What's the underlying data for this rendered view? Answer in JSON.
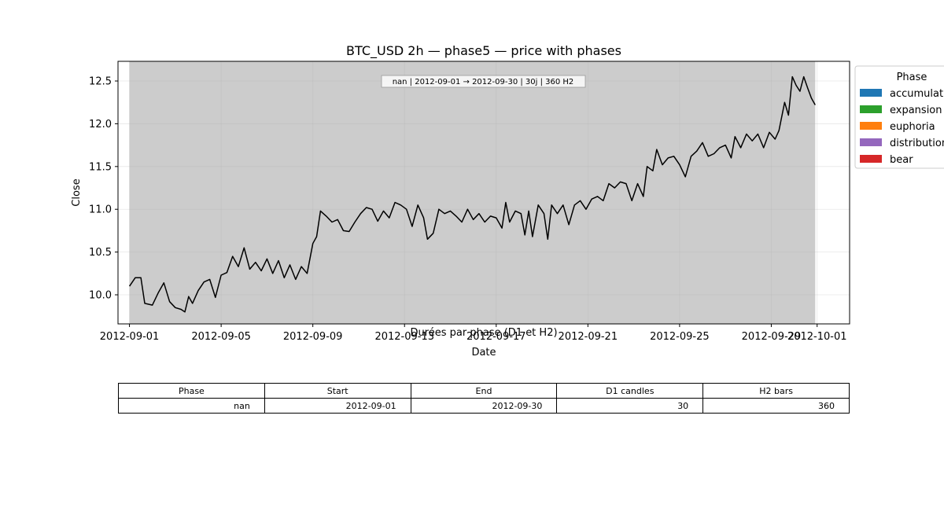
{
  "chart_data": {
    "type": "line",
    "title": "BTC_USD 2h — phase5 — price with phases",
    "xlabel": "Date",
    "ylabel": "Close",
    "x_ticks": [
      "2012-09-01",
      "2012-09-05",
      "2012-09-09",
      "2012-09-13",
      "2012-09-17",
      "2012-09-21",
      "2012-09-25",
      "2012-09-29",
      "2012-10-01"
    ],
    "y_ticks": [
      10.0,
      10.5,
      11.0,
      11.5,
      12.0,
      12.5
    ],
    "xlim": [
      "2012-08-31T12:00",
      "2012-10-02T10:00"
    ],
    "ylim": [
      9.66,
      12.73
    ],
    "grid": true,
    "legend": {
      "title": "Phase",
      "placement": "outside-top-right",
      "entries": [
        {
          "label": "accumulation",
          "color": "#1f77b4"
        },
        {
          "label": "expansion",
          "color": "#2ca02c"
        },
        {
          "label": "euphoria",
          "color": "#ff7f0e"
        },
        {
          "label": "distribution",
          "color": "#9467bd"
        },
        {
          "label": "bear",
          "color": "#d62728"
        }
      ]
    },
    "shaded_regions": [
      {
        "start": "2012-09-01",
        "end": "2012-09-30T22:00",
        "color": "#cccccc"
      }
    ],
    "annotation": "nan | 2012-09-01 → 2012-09-30 | 30j | 360 H2",
    "series": [
      {
        "line_color": "#000000",
        "points": [
          [
            "2012-09-01T00:00",
            10.1
          ],
          [
            "2012-09-01T06:00",
            10.2
          ],
          [
            "2012-09-01T12:00",
            10.2
          ],
          [
            "2012-09-01T16:00",
            9.9
          ],
          [
            "2012-09-02T00:00",
            9.88
          ],
          [
            "2012-09-02T06:00",
            10.02
          ],
          [
            "2012-09-02T12:00",
            10.14
          ],
          [
            "2012-09-02T18:00",
            9.92
          ],
          [
            "2012-09-03T00:00",
            9.85
          ],
          [
            "2012-09-03T06:00",
            9.83
          ],
          [
            "2012-09-03T10:00",
            9.8
          ],
          [
            "2012-09-03T14:00",
            9.98
          ],
          [
            "2012-09-03T18:00",
            9.9
          ],
          [
            "2012-09-04T00:00",
            10.05
          ],
          [
            "2012-09-04T06:00",
            10.15
          ],
          [
            "2012-09-04T12:00",
            10.18
          ],
          [
            "2012-09-04T18:00",
            9.97
          ],
          [
            "2012-09-05T00:00",
            10.23
          ],
          [
            "2012-09-05T06:00",
            10.26
          ],
          [
            "2012-09-05T12:00",
            10.45
          ],
          [
            "2012-09-05T18:00",
            10.33
          ],
          [
            "2012-09-06T00:00",
            10.55
          ],
          [
            "2012-09-06T06:00",
            10.3
          ],
          [
            "2012-09-06T12:00",
            10.38
          ],
          [
            "2012-09-06T18:00",
            10.28
          ],
          [
            "2012-09-07T00:00",
            10.42
          ],
          [
            "2012-09-07T06:00",
            10.25
          ],
          [
            "2012-09-07T12:00",
            10.4
          ],
          [
            "2012-09-07T18:00",
            10.2
          ],
          [
            "2012-09-08T00:00",
            10.35
          ],
          [
            "2012-09-08T06:00",
            10.18
          ],
          [
            "2012-09-08T12:00",
            10.33
          ],
          [
            "2012-09-08T18:00",
            10.25
          ],
          [
            "2012-09-09T00:00",
            10.6
          ],
          [
            "2012-09-09T04:00",
            10.68
          ],
          [
            "2012-09-09T08:00",
            10.98
          ],
          [
            "2012-09-09T14:00",
            10.92
          ],
          [
            "2012-09-09T20:00",
            10.85
          ],
          [
            "2012-09-10T02:00",
            10.88
          ],
          [
            "2012-09-10T08:00",
            10.75
          ],
          [
            "2012-09-10T14:00",
            10.74
          ],
          [
            "2012-09-10T20:00",
            10.85
          ],
          [
            "2012-09-11T02:00",
            10.95
          ],
          [
            "2012-09-11T08:00",
            11.02
          ],
          [
            "2012-09-11T14:00",
            11.0
          ],
          [
            "2012-09-11T20:00",
            10.86
          ],
          [
            "2012-09-12T02:00",
            10.98
          ],
          [
            "2012-09-12T08:00",
            10.9
          ],
          [
            "2012-09-12T14:00",
            11.08
          ],
          [
            "2012-09-12T20:00",
            11.05
          ],
          [
            "2012-09-13T02:00",
            11.0
          ],
          [
            "2012-09-13T08:00",
            10.8
          ],
          [
            "2012-09-13T14:00",
            11.05
          ],
          [
            "2012-09-13T20:00",
            10.9
          ],
          [
            "2012-09-14T00:00",
            10.65
          ],
          [
            "2012-09-14T06:00",
            10.72
          ],
          [
            "2012-09-14T12:00",
            11.0
          ],
          [
            "2012-09-14T18:00",
            10.95
          ],
          [
            "2012-09-15T00:00",
            10.98
          ],
          [
            "2012-09-15T06:00",
            10.92
          ],
          [
            "2012-09-15T12:00",
            10.85
          ],
          [
            "2012-09-15T18:00",
            11.0
          ],
          [
            "2012-09-16T00:00",
            10.88
          ],
          [
            "2012-09-16T06:00",
            10.95
          ],
          [
            "2012-09-16T12:00",
            10.85
          ],
          [
            "2012-09-16T18:00",
            10.92
          ],
          [
            "2012-09-17T00:00",
            10.9
          ],
          [
            "2012-09-17T06:00",
            10.78
          ],
          [
            "2012-09-17T10:00",
            11.08
          ],
          [
            "2012-09-17T14:00",
            10.85
          ],
          [
            "2012-09-17T20:00",
            10.98
          ],
          [
            "2012-09-18T02:00",
            10.95
          ],
          [
            "2012-09-18T06:00",
            10.7
          ],
          [
            "2012-09-18T10:00",
            10.98
          ],
          [
            "2012-09-18T14:00",
            10.68
          ],
          [
            "2012-09-18T20:00",
            11.05
          ],
          [
            "2012-09-19T02:00",
            10.95
          ],
          [
            "2012-09-19T06:00",
            10.65
          ],
          [
            "2012-09-19T10:00",
            11.05
          ],
          [
            "2012-09-19T16:00",
            10.95
          ],
          [
            "2012-09-19T22:00",
            11.05
          ],
          [
            "2012-09-20T04:00",
            10.82
          ],
          [
            "2012-09-20T10:00",
            11.05
          ],
          [
            "2012-09-20T16:00",
            11.1
          ],
          [
            "2012-09-20T22:00",
            11.0
          ],
          [
            "2012-09-21T04:00",
            11.12
          ],
          [
            "2012-09-21T10:00",
            11.15
          ],
          [
            "2012-09-21T16:00",
            11.1
          ],
          [
            "2012-09-21T22:00",
            11.3
          ],
          [
            "2012-09-22T04:00",
            11.25
          ],
          [
            "2012-09-22T10:00",
            11.32
          ],
          [
            "2012-09-22T16:00",
            11.3
          ],
          [
            "2012-09-22T22:00",
            11.1
          ],
          [
            "2012-09-23T04:00",
            11.3
          ],
          [
            "2012-09-23T10:00",
            11.15
          ],
          [
            "2012-09-23T14:00",
            11.5
          ],
          [
            "2012-09-23T20:00",
            11.45
          ],
          [
            "2012-09-24T00:00",
            11.7
          ],
          [
            "2012-09-24T06:00",
            11.52
          ],
          [
            "2012-09-24T12:00",
            11.6
          ],
          [
            "2012-09-24T18:00",
            11.62
          ],
          [
            "2012-09-25T00:00",
            11.52
          ],
          [
            "2012-09-25T06:00",
            11.38
          ],
          [
            "2012-09-25T12:00",
            11.62
          ],
          [
            "2012-09-25T18:00",
            11.68
          ],
          [
            "2012-09-26T00:00",
            11.78
          ],
          [
            "2012-09-26T06:00",
            11.62
          ],
          [
            "2012-09-26T12:00",
            11.65
          ],
          [
            "2012-09-26T18:00",
            11.72
          ],
          [
            "2012-09-27T00:00",
            11.75
          ],
          [
            "2012-09-27T06:00",
            11.6
          ],
          [
            "2012-09-27T10:00",
            11.85
          ],
          [
            "2012-09-27T16:00",
            11.72
          ],
          [
            "2012-09-27T22:00",
            11.88
          ],
          [
            "2012-09-28T04:00",
            11.8
          ],
          [
            "2012-09-28T10:00",
            11.88
          ],
          [
            "2012-09-28T16:00",
            11.72
          ],
          [
            "2012-09-28T22:00",
            11.9
          ],
          [
            "2012-09-29T04:00",
            11.82
          ],
          [
            "2012-09-29T08:00",
            11.92
          ],
          [
            "2012-09-29T14:00",
            12.25
          ],
          [
            "2012-09-29T18:00",
            12.1
          ],
          [
            "2012-09-29T22:00",
            12.55
          ],
          [
            "2012-09-30T02:00",
            12.45
          ],
          [
            "2012-09-30T06:00",
            12.38
          ],
          [
            "2012-09-30T10:00",
            12.55
          ],
          [
            "2012-09-30T14:00",
            12.42
          ],
          [
            "2012-09-30T18:00",
            12.3
          ],
          [
            "2012-09-30T22:00",
            12.22
          ]
        ]
      }
    ],
    "table": {
      "title": "Durées par phase (D1 et H2)",
      "columns": [
        "Phase",
        "Start",
        "End",
        "D1 candles",
        "H2 bars"
      ],
      "rows": [
        [
          "nan",
          "2012-09-01",
          "2012-09-30",
          "30",
          "360"
        ]
      ]
    }
  }
}
